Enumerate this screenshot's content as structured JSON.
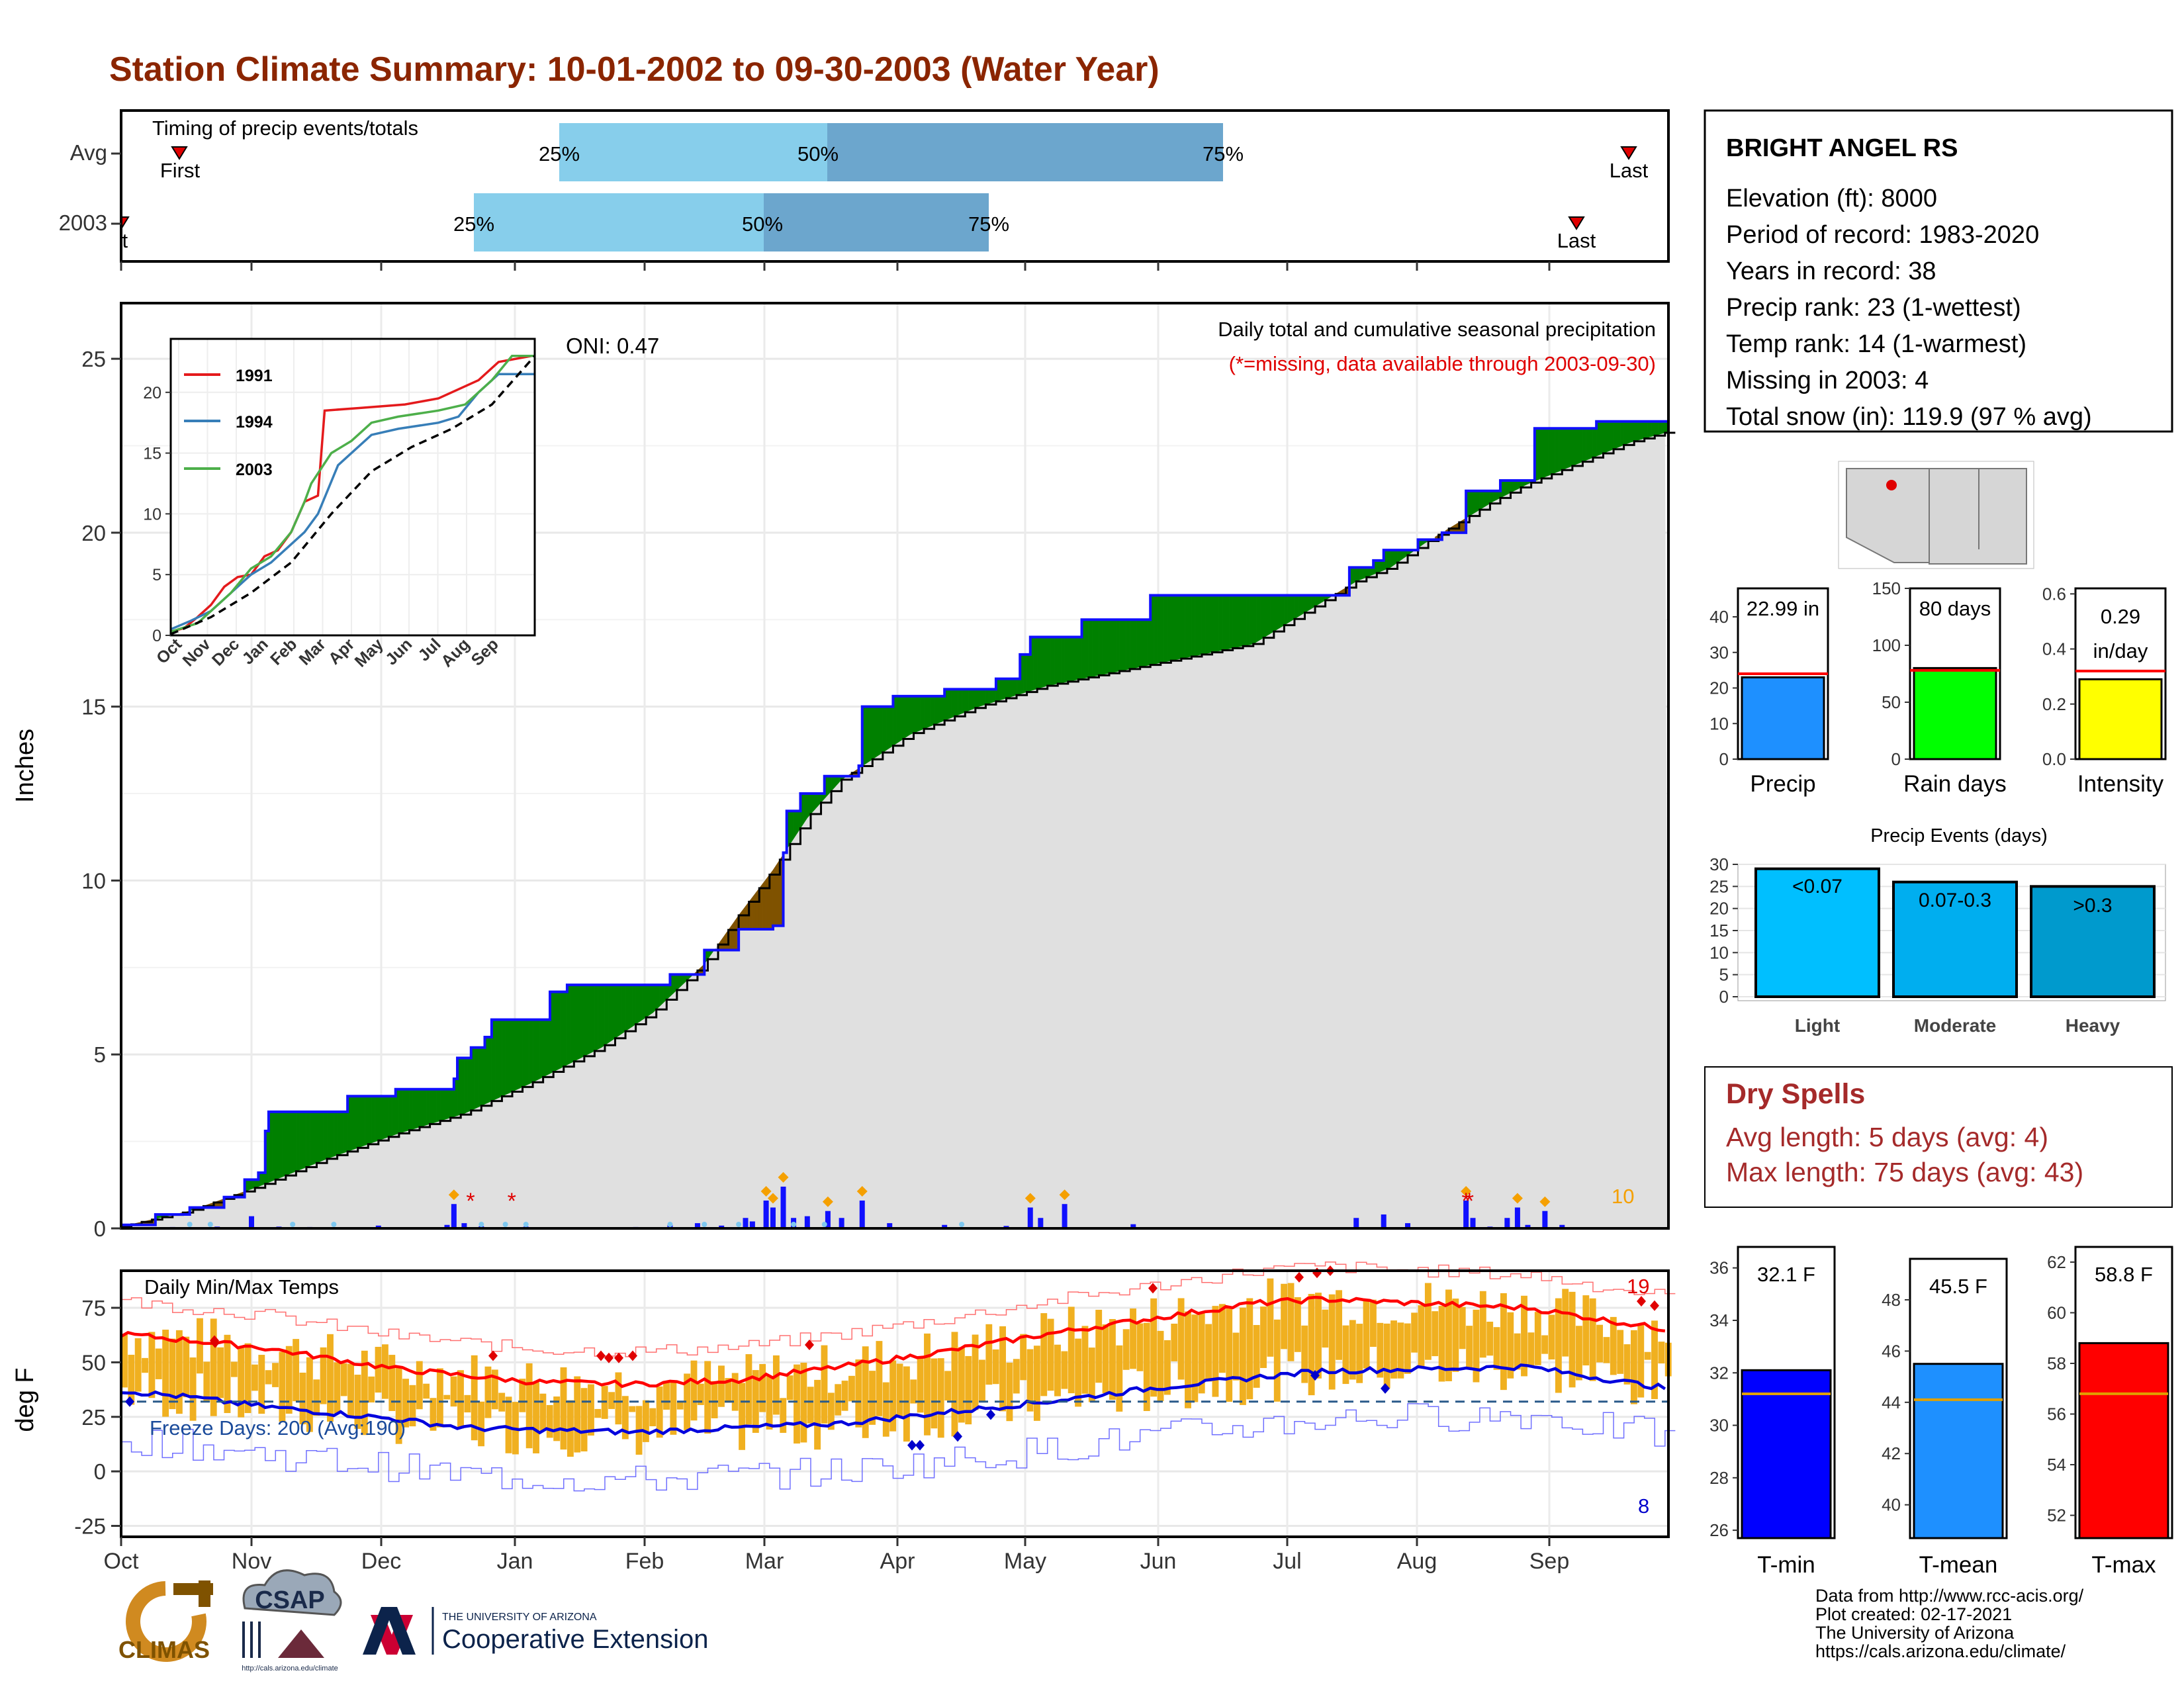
{
  "title": "Station Climate Summary: 10-01-2002 to 09-30-2003 (Water Year)",
  "colors": {
    "title": "#8B2500",
    "wet_fill": "#008000",
    "dry_fill": "#7F5200",
    "avg_area": "#E0E0E0",
    "precip_bar": "#1010FF",
    "snow_bar": "#7EC8F0",
    "temp_band": "#F0B020",
    "tmax_line": "#FF0000",
    "tmin_line": "#0000DD"
  },
  "timing": {
    "title": "Timing of precip events/totals",
    "row_labels": [
      "Avg",
      "2003"
    ],
    "avg": {
      "first_label": "First",
      "last_label": "Last",
      "q25": "25%",
      "q50": "50%",
      "q75": "75%"
    },
    "y2003": {
      "first_label": "First",
      "last_label": "Last",
      "q25": "25%",
      "q50": "50%",
      "q75": "75%"
    }
  },
  "station": {
    "name": "BRIGHT ANGEL RS",
    "lines": [
      "Elevation (ft): 8000",
      "Period of record: 1983-2020",
      "Years in record: 38",
      "Precip rank: 23 (1-wettest)",
      "Temp rank: 14 (1-warmest)",
      "Missing in 2003: 4",
      "Total snow (in): 119.9 (97 % avg)"
    ]
  },
  "precip_panel": {
    "ylabel": "Inches",
    "yticks": [
      "0",
      "5",
      "10",
      "15",
      "20",
      "25"
    ],
    "note1": "Daily total and cumulative seasonal precipitation",
    "note2": "(*=missing, data available through 2003-09-30)",
    "oni": "ONI: 0.47",
    "count_label": "10"
  },
  "inset": {
    "yticks": [
      "0",
      "5",
      "10",
      "15",
      "20"
    ],
    "months": [
      "Oct",
      "Nov",
      "Dec",
      "Jan",
      "Feb",
      "Mar",
      "Apr",
      "May",
      "Jun",
      "Jul",
      "Aug",
      "Sep"
    ],
    "legend": [
      "1991",
      "1994",
      "2003"
    ]
  },
  "temp_panel": {
    "title": "Daily Min/Max Temps",
    "ylabel": "deg F",
    "yticks": [
      "-25",
      "0",
      "25",
      "50",
      "75"
    ],
    "freeze_text": "Freeze Days: 200 (Avg:190)",
    "max_count": "19",
    "min_count": "8"
  },
  "months": [
    "Oct",
    "Nov",
    "Dec",
    "Jan",
    "Feb",
    "Mar",
    "Apr",
    "May",
    "Jun",
    "Jul",
    "Aug",
    "Sep"
  ],
  "stat_bars": [
    {
      "label": "Precip",
      "value_text": "22.99 in",
      "yticks": [
        "0",
        "10",
        "20",
        "30",
        "40"
      ]
    },
    {
      "label": "Rain days",
      "value_text": "80 days",
      "yticks": [
        "0",
        "50",
        "100",
        "150"
      ]
    },
    {
      "label": "Intensity",
      "value_text": "0.29",
      "value_text2": "in/day",
      "yticks": [
        "0.0",
        "0.2",
        "0.4",
        "0.6"
      ]
    }
  ],
  "events": {
    "title": "Precip Events (days)",
    "yticks": [
      "0",
      "5",
      "10",
      "15",
      "20",
      "25",
      "30"
    ],
    "bars": [
      {
        "label": "Light",
        "text": "<0.07"
      },
      {
        "label": "Moderate",
        "text": "0.07-0.3"
      },
      {
        "label": "Heavy",
        "text": ">0.3"
      }
    ]
  },
  "dry_spells": {
    "title": "Dry Spells",
    "avg_line": "Avg length: 5 days (avg: 4)",
    "max_line": "Max length: 75 days (avg: 43)"
  },
  "temp_bars": [
    {
      "label": "T-min",
      "value_text": "32.1 F",
      "yticks": [
        "26",
        "28",
        "30",
        "32",
        "34",
        "36"
      ]
    },
    {
      "label": "T-mean",
      "value_text": "45.5 F",
      "yticks": [
        "40",
        "42",
        "44",
        "46",
        "48"
      ]
    },
    {
      "label": "T-max",
      "value_text": "58.8 F",
      "yticks": [
        "52",
        "54",
        "56",
        "58",
        "60",
        "62"
      ]
    }
  ],
  "credits": [
    "Data from http://www.rcc-acis.org/",
    "Plot created: 02-17-2021",
    "The University of Arizona",
    "https://cals.arizona.edu/climate/"
  ],
  "logos": {
    "climas": "CLIMAS",
    "csap": "CSAP",
    "csap_url": "http://cals.arizona.edu/climate",
    "ua_small": "THE UNIVERSITY OF ARIZONA",
    "ua_big": "Cooperative Extension"
  },
  "chart_data": [
    {
      "type": "area",
      "name": "cumulative_precip",
      "x_unit": "day of water year",
      "ylim": [
        0,
        25
      ],
      "grid": true,
      "cumulative_2003": [
        [
          0,
          0.1
        ],
        [
          10,
          0.4
        ],
        [
          20,
          0.6
        ],
        [
          30,
          0.9
        ],
        [
          36,
          1.4
        ],
        [
          40,
          1.6
        ],
        [
          42,
          2.8
        ],
        [
          43,
          3.35
        ],
        [
          60,
          3.35
        ],
        [
          65,
          3.35
        ],
        [
          66,
          3.8
        ],
        [
          80,
          4.0
        ],
        [
          97,
          4.3
        ],
        [
          98,
          4.9
        ],
        [
          102,
          5.2
        ],
        [
          106,
          5.5
        ],
        [
          108,
          6.0
        ],
        [
          125,
          6.8
        ],
        [
          130,
          7.0
        ],
        [
          155,
          7.0
        ],
        [
          160,
          7.3
        ],
        [
          170,
          8.0
        ],
        [
          180,
          8.6
        ],
        [
          190,
          8.7
        ],
        [
          193,
          10.8
        ],
        [
          194,
          12.0
        ],
        [
          198,
          12.5
        ],
        [
          205,
          13.0
        ],
        [
          215,
          13.3
        ],
        [
          216,
          15.0
        ],
        [
          225,
          15.3
        ],
        [
          240,
          15.5
        ],
        [
          255,
          15.8
        ],
        [
          262,
          16.5
        ],
        [
          265,
          17.0
        ],
        [
          280,
          17.5
        ],
        [
          300,
          18.2
        ],
        [
          310,
          18.2
        ],
        [
          330,
          18.2
        ],
        [
          340,
          18.2
        ],
        [
          350,
          18.2
        ],
        [
          358,
          19.0
        ],
        [
          365,
          19.2
        ],
        [
          368,
          19.5
        ],
        [
          378,
          19.8
        ],
        [
          385,
          20.0
        ],
        [
          392,
          21.2
        ],
        [
          402,
          21.5
        ],
        [
          412,
          23.0
        ],
        [
          420,
          23.0
        ],
        [
          430,
          23.2
        ],
        [
          440,
          23.2
        ],
        [
          451,
          23.0
        ]
      ],
      "cumulative_avg": [
        [
          0,
          0.05
        ],
        [
          20,
          0.5
        ],
        [
          40,
          1.2
        ],
        [
          60,
          2.0
        ],
        [
          80,
          2.7
        ],
        [
          100,
          3.3
        ],
        [
          120,
          4.2
        ],
        [
          140,
          5.2
        ],
        [
          155,
          6.2
        ],
        [
          170,
          7.6
        ],
        [
          180,
          9.0
        ],
        [
          190,
          10.3
        ],
        [
          200,
          11.8
        ],
        [
          210,
          12.9
        ],
        [
          230,
          14.2
        ],
        [
          250,
          15.0
        ],
        [
          270,
          15.6
        ],
        [
          290,
          16.0
        ],
        [
          310,
          16.4
        ],
        [
          330,
          16.8
        ],
        [
          340,
          17.4
        ],
        [
          350,
          18.0
        ],
        [
          360,
          18.6
        ],
        [
          370,
          19.0
        ],
        [
          380,
          19.7
        ],
        [
          390,
          20.3
        ],
        [
          400,
          20.9
        ],
        [
          410,
          21.4
        ],
        [
          420,
          21.8
        ],
        [
          430,
          22.2
        ],
        [
          440,
          22.6
        ],
        [
          451,
          22.9
        ]
      ],
      "daily_precip": [
        [
          4,
          0.02
        ],
        [
          15,
          0.04
        ],
        [
          28,
          0.05
        ],
        [
          38,
          0.35
        ],
        [
          46,
          0.05
        ],
        [
          55,
          0.04
        ],
        [
          65,
          0.03
        ],
        [
          75,
          0.08
        ],
        [
          95,
          0.1
        ],
        [
          97,
          0.7
        ],
        [
          100,
          0.15
        ],
        [
          105,
          0.06
        ],
        [
          118,
          0.05
        ],
        [
          150,
          0.04
        ],
        [
          160,
          0.1
        ],
        [
          168,
          0.15
        ],
        [
          175,
          0.08
        ],
        [
          182,
          0.3
        ],
        [
          184,
          0.2
        ],
        [
          188,
          0.8
        ],
        [
          190,
          0.6
        ],
        [
          193,
          1.2
        ],
        [
          196,
          0.3
        ],
        [
          200,
          0.35
        ],
        [
          206,
          0.5
        ],
        [
          210,
          0.3
        ],
        [
          216,
          0.8
        ],
        [
          224,
          0.15
        ],
        [
          240,
          0.1
        ],
        [
          258,
          0.07
        ],
        [
          265,
          0.6
        ],
        [
          268,
          0.3
        ],
        [
          275,
          0.7
        ],
        [
          295,
          0.12
        ],
        [
          360,
          0.3
        ],
        [
          368,
          0.4
        ],
        [
          375,
          0.15
        ],
        [
          392,
          0.8
        ],
        [
          394,
          0.3
        ],
        [
          399,
          0.05
        ],
        [
          404,
          0.3
        ],
        [
          407,
          0.6
        ],
        [
          410,
          0.1
        ],
        [
          415,
          0.5
        ],
        [
          420,
          0.1
        ]
      ],
      "missing_days": [
        98,
        110,
        392,
        393
      ]
    },
    {
      "type": "line",
      "name": "inset_cumulative_comparison",
      "xlabel": "",
      "ylim": [
        0,
        24
      ],
      "series": [
        {
          "name": "1991",
          "points": [
            [
              0,
              0.3
            ],
            [
              10,
              0.6
            ],
            [
              20,
              1.5
            ],
            [
              30,
              2.5
            ],
            [
              40,
              4.0
            ],
            [
              50,
              4.8
            ],
            [
              60,
              5.0
            ],
            [
              70,
              6.5
            ],
            [
              80,
              7.0
            ],
            [
              90,
              8.5
            ],
            [
              100,
              11.0
            ],
            [
              110,
              11.5
            ],
            [
              115,
              18.5
            ],
            [
              140,
              18.7
            ],
            [
              175,
              19.0
            ],
            [
              200,
              19.5
            ],
            [
              230,
              21.0
            ],
            [
              245,
              22.5
            ],
            [
              270,
              23.0
            ]
          ]
        },
        {
          "name": "1994",
          "points": [
            [
              0,
              0.5
            ],
            [
              15,
              1.2
            ],
            [
              30,
              2.0
            ],
            [
              45,
              3.5
            ],
            [
              60,
              5.0
            ],
            [
              75,
              6.0
            ],
            [
              90,
              7.5
            ],
            [
              100,
              8.5
            ],
            [
              110,
              10.0
            ],
            [
              125,
              14.0
            ],
            [
              135,
              15.0
            ],
            [
              150,
              16.5
            ],
            [
              170,
              17.0
            ],
            [
              200,
              17.5
            ],
            [
              215,
              18.0
            ],
            [
              230,
              20.0
            ],
            [
              245,
              21.5
            ],
            [
              260,
              21.5
            ],
            [
              272,
              21.5
            ]
          ]
        },
        {
          "name": "2003",
          "points": [
            [
              0,
              0.3
            ],
            [
              20,
              1.0
            ],
            [
              30,
              2.0
            ],
            [
              45,
              3.5
            ],
            [
              60,
              5.5
            ],
            [
              75,
              6.5
            ],
            [
              90,
              8.5
            ],
            [
              100,
              11.0
            ],
            [
              105,
              12.5
            ],
            [
              120,
              15.0
            ],
            [
              135,
              16.0
            ],
            [
              150,
              17.5
            ],
            [
              170,
              18.0
            ],
            [
              200,
              18.5
            ],
            [
              220,
              19.0
            ],
            [
              240,
              21.0
            ],
            [
              255,
              23.0
            ],
            [
              272,
              23.0
            ]
          ]
        },
        {
          "name": "average",
          "points": [
            [
              0,
              0.1
            ],
            [
              30,
              1.5
            ],
            [
              60,
              3.5
            ],
            [
              90,
              6.0
            ],
            [
              120,
              10.0
            ],
            [
              150,
              13.5
            ],
            [
              180,
              15.5
            ],
            [
              210,
              17.0
            ],
            [
              240,
              19.0
            ],
            [
              272,
              23.0
            ]
          ]
        }
      ]
    },
    {
      "type": "line",
      "name": "daily_temperatures",
      "ylim": [
        -30,
        90
      ],
      "tmax_avg": [
        [
          0,
          63
        ],
        [
          20,
          60
        ],
        [
          40,
          57
        ],
        [
          60,
          52
        ],
        [
          80,
          47
        ],
        [
          100,
          44
        ],
        [
          120,
          41
        ],
        [
          150,
          40
        ],
        [
          180,
          42
        ],
        [
          210,
          48
        ],
        [
          240,
          55
        ],
        [
          270,
          63
        ],
        [
          300,
          70
        ],
        [
          330,
          77
        ],
        [
          350,
          79
        ],
        [
          380,
          77
        ],
        [
          410,
          75
        ],
        [
          430,
          70
        ],
        [
          451,
          65
        ]
      ],
      "tmin_avg": [
        [
          0,
          37
        ],
        [
          20,
          34
        ],
        [
          40,
          30
        ],
        [
          60,
          27
        ],
        [
          80,
          24
        ],
        [
          100,
          20
        ],
        [
          120,
          19
        ],
        [
          150,
          18
        ],
        [
          180,
          20
        ],
        [
          210,
          22
        ],
        [
          240,
          27
        ],
        [
          270,
          32
        ],
        [
          300,
          38
        ],
        [
          330,
          43
        ],
        [
          350,
          46
        ],
        [
          380,
          47
        ],
        [
          410,
          48
        ],
        [
          430,
          43
        ],
        [
          451,
          38
        ]
      ],
      "freezing_line": 32
    },
    {
      "type": "bar",
      "name": "precip_total",
      "categories": [
        "Precip"
      ],
      "values": [
        22.99
      ],
      "average": 24.0,
      "ylim": [
        0,
        48
      ]
    },
    {
      "type": "bar",
      "name": "rain_days",
      "categories": [
        "Rain days"
      ],
      "values": [
        80
      ],
      "average": 78,
      "ylim": [
        0,
        150
      ]
    },
    {
      "type": "bar",
      "name": "intensity",
      "categories": [
        "Intensity"
      ],
      "values": [
        0.29
      ],
      "average": 0.32,
      "ylim": [
        0,
        0.62
      ]
    },
    {
      "type": "bar",
      "name": "precip_events",
      "categories": [
        "Light",
        "Moderate",
        "Heavy"
      ],
      "values": [
        29,
        26,
        25
      ],
      "ylim": [
        0,
        30
      ]
    },
    {
      "type": "bar",
      "name": "tmin",
      "categories": [
        "T-min"
      ],
      "values": [
        32.1
      ],
      "average": 31.2,
      "ylim": [
        25.7,
        36.8
      ]
    },
    {
      "type": "bar",
      "name": "tmean",
      "categories": [
        "T-mean"
      ],
      "values": [
        45.5
      ],
      "average": 44.1,
      "ylim": [
        38.7,
        49.6
      ]
    },
    {
      "type": "bar",
      "name": "tmax",
      "categories": [
        "T-max"
      ],
      "values": [
        58.8
      ],
      "average": 56.8,
      "ylim": [
        51.1,
        62.6
      ]
    }
  ]
}
